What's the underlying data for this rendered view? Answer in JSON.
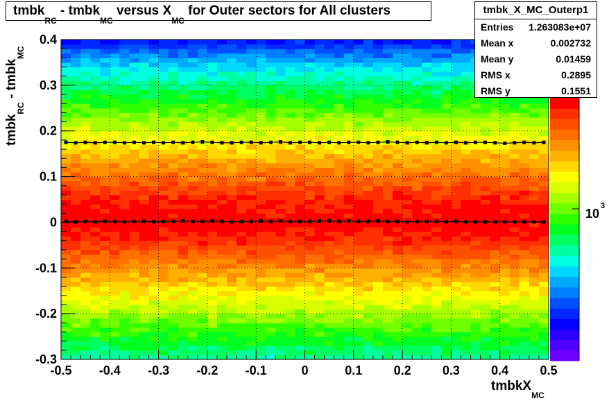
{
  "title": {
    "part1": "tmbk",
    "sub1": "RC",
    "part2": " - tmbk",
    "sub2": "MC",
    "part3": " versus X",
    "sub3": "MC",
    "part4": " for Outer sectors for All clusters"
  },
  "stats_box": {
    "name": "tmbk_X_MC_Outerp1",
    "rows": [
      {
        "label": "Entries",
        "value": "1.263083e+07"
      },
      {
        "label": "Mean x",
        "value": "0.002732"
      },
      {
        "label": "Mean y",
        "value": "0.01459"
      },
      {
        "label": "RMS x",
        "value": "0.2895"
      },
      {
        "label": "RMS y",
        "value": "0.1551"
      }
    ]
  },
  "axes": {
    "x_title_main": "tmbkX",
    "x_title_sub": "MC",
    "y_title_main": "tmbk",
    "y_title_sub1": "RC",
    "y_title_mid": " - tmbk",
    "y_title_sub2": "MC"
  },
  "colorbar": {
    "label_base": "10",
    "label_exp": "3"
  },
  "chart_data": {
    "type": "heatmap",
    "title": "tmbk_RC - tmbk_MC versus X_MC for Outer sectors for All clusters",
    "xlabel": "tmbkX_MC",
    "ylabel": "tmbk_RC - tmbk_MC",
    "xlim": [
      -0.5,
      0.5
    ],
    "ylim": [
      -0.3,
      0.4
    ],
    "x_ticks": [
      -0.5,
      -0.4,
      -0.3,
      -0.2,
      -0.1,
      0,
      0.1,
      0.2,
      0.3,
      0.4,
      0.5
    ],
    "x_tick_labels": [
      "-0.5",
      "-0.4",
      "-0.3",
      "-0.2",
      "-0.1",
      "0",
      "0.1",
      "0.2",
      "0.3",
      "0.4",
      "0.5"
    ],
    "y_ticks": [
      -0.3,
      -0.2,
      -0.1,
      0,
      0.1,
      0.2,
      0.3,
      0.4
    ],
    "y_tick_labels": [
      "-0.3",
      "-0.2",
      "-0.1",
      "0",
      "0.1",
      "0.2",
      "0.3",
      "0.4"
    ],
    "grid": true,
    "z_scale": "log",
    "density_profile": {
      "description_y": [
        -0.3,
        -0.25,
        -0.2,
        -0.15,
        -0.1,
        -0.05,
        0,
        0.05,
        0.1,
        0.15,
        0.2,
        0.25,
        0.3,
        0.35,
        0.4
      ],
      "level": [
        0.42,
        0.52,
        0.62,
        0.72,
        0.82,
        0.93,
        1.0,
        0.96,
        0.86,
        0.76,
        0.66,
        0.55,
        0.44,
        0.32,
        0.15
      ]
    },
    "series": [
      {
        "name": "mean",
        "x": [
          -0.49,
          -0.47,
          -0.45,
          -0.43,
          -0.41,
          -0.39,
          -0.37,
          -0.35,
          -0.33,
          -0.31,
          -0.29,
          -0.27,
          -0.25,
          -0.23,
          -0.21,
          -0.19,
          -0.17,
          -0.15,
          -0.13,
          -0.11,
          -0.09,
          -0.07,
          -0.05,
          -0.03,
          -0.01,
          0.01,
          0.03,
          0.05,
          0.07,
          0.09,
          0.11,
          0.13,
          0.15,
          0.17,
          0.19,
          0.21,
          0.23,
          0.25,
          0.27,
          0.29,
          0.31,
          0.33,
          0.35,
          0.37,
          0.39,
          0.41,
          0.43,
          0.45,
          0.47,
          0.49
        ],
        "y": [
          0.002,
          0.001,
          0.002,
          0.001,
          0.002,
          0.002,
          0.001,
          0.002,
          0.002,
          0.001,
          0.002,
          0.002,
          0.003,
          0.002,
          0.002,
          0.003,
          0.002,
          0.001,
          0.002,
          0.002,
          0.003,
          0.002,
          0.003,
          0.002,
          0.002,
          0.002,
          0.003,
          0.003,
          0.002,
          0.003,
          0.002,
          0.002,
          0.003,
          0.002,
          0.002,
          0.001,
          0.002,
          0.002,
          0.002,
          0.001,
          0.002,
          0.001,
          0.001,
          0.001,
          0.001,
          0.001,
          0.001,
          0.001,
          0.001,
          0.001
        ]
      },
      {
        "name": "rms",
        "x": [
          -0.49,
          -0.47,
          -0.45,
          -0.43,
          -0.41,
          -0.39,
          -0.37,
          -0.35,
          -0.33,
          -0.31,
          -0.29,
          -0.27,
          -0.25,
          -0.23,
          -0.21,
          -0.19,
          -0.17,
          -0.15,
          -0.13,
          -0.11,
          -0.09,
          -0.07,
          -0.05,
          -0.03,
          -0.01,
          0.01,
          0.03,
          0.05,
          0.07,
          0.09,
          0.11,
          0.13,
          0.15,
          0.17,
          0.19,
          0.21,
          0.23,
          0.25,
          0.27,
          0.29,
          0.31,
          0.33,
          0.35,
          0.37,
          0.39,
          0.41,
          0.43,
          0.45,
          0.47,
          0.49
        ],
        "y": [
          0.175,
          0.174,
          0.175,
          0.174,
          0.175,
          0.175,
          0.174,
          0.175,
          0.174,
          0.175,
          0.174,
          0.175,
          0.174,
          0.175,
          0.176,
          0.175,
          0.174,
          0.174,
          0.175,
          0.175,
          0.174,
          0.175,
          0.176,
          0.174,
          0.175,
          0.175,
          0.174,
          0.175,
          0.174,
          0.175,
          0.175,
          0.174,
          0.175,
          0.176,
          0.175,
          0.174,
          0.175,
          0.174,
          0.175,
          0.174,
          0.175,
          0.174,
          0.175,
          0.175,
          0.174,
          0.173,
          0.174,
          0.175,
          0.174,
          0.175
        ]
      }
    ],
    "colorbar_palette": [
      "#6c00ff",
      "#5000ff",
      "#2a00ff",
      "#0000ff",
      "#0028ff",
      "#0050ff",
      "#0080ff",
      "#00a8ff",
      "#00d8ff",
      "#00ffe0",
      "#00ffa0",
      "#00ff60",
      "#00ff20",
      "#30ff00",
      "#70ff00",
      "#a8ff00",
      "#d8ff00",
      "#ffff00",
      "#ffd800",
      "#ffb000",
      "#ff9000",
      "#ff7000",
      "#ff5000",
      "#ff3000",
      "#ff0000"
    ]
  }
}
